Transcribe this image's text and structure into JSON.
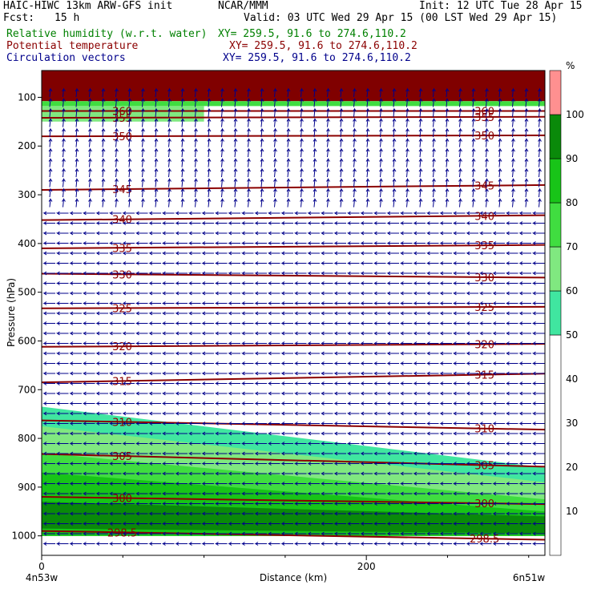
{
  "header": {
    "title_left": "HAIC-HIWC 13km ARW-GFS init",
    "title_center": "NCAR/MMM",
    "init": "Init: 12 UTC Tue 28 Apr 15",
    "fcst_label": "Fcst:",
    "fcst_value": "15 h",
    "valid": "Valid: 03 UTC Wed 29 Apr 15 (00 LST Wed 29 Apr 15)",
    "fields": [
      {
        "name": "Relative humidity (w.r.t. water)",
        "xy": "XY= 259.5, 91.6 to 274.6,110.2",
        "color": "#008000"
      },
      {
        "name": "Potential temperature",
        "xy": "XY= 259.5, 91.6 to 274.6,110.2",
        "color": "#8b0000"
      },
      {
        "name": "Circulation vectors",
        "xy": "XY= 259.5, 91.6 to 274.6,110.2",
        "color": "#00008b"
      }
    ]
  },
  "chart_data": {
    "type": "cross-section",
    "ylabel": "Pressure (hPa)",
    "xlabel": "Distance (km)",
    "y_ticks": [
      100,
      200,
      300,
      400,
      500,
      600,
      700,
      800,
      900,
      1000
    ],
    "x_ticks": [
      0,
      200
    ],
    "ylim": [
      1040,
      45
    ],
    "xlim": [
      0,
      310
    ],
    "x_end_labels": {
      "left": "4n53w",
      "right": "6n51w"
    },
    "rh_colorbar": {
      "unit": "%",
      "levels": [
        10,
        20,
        30,
        40,
        50,
        60,
        70,
        80,
        90,
        100
      ],
      "colors": [
        {
          "from": 0,
          "to": 50,
          "color": "#ffffff"
        },
        {
          "from": 50,
          "to": 60,
          "color": "#40e6a0"
        },
        {
          "from": 60,
          "to": 70,
          "color": "#80e880"
        },
        {
          "from": 70,
          "to": 80,
          "color": "#40dd40"
        },
        {
          "from": 80,
          "to": 90,
          "color": "#18c418"
        },
        {
          "from": 90,
          "to": 100,
          "color": "#0a8a0a"
        },
        {
          "from": 100,
          "to": 110,
          "color": "#ff9090"
        }
      ]
    },
    "theta_contours": [
      {
        "label": "360",
        "p_start": 128,
        "p_end": 128
      },
      {
        "label": "355",
        "p_start": 142,
        "p_end": 140
      },
      {
        "label": "350",
        "p_start": 180,
        "p_end": 178
      },
      {
        "label": "345",
        "p_start": 290,
        "p_end": 280
      },
      {
        "label": "340",
        "p_start": 352,
        "p_end": 342
      },
      {
        "label": "335",
        "p_start": 410,
        "p_end": 403
      },
      {
        "label": "330",
        "p_start": 462,
        "p_end": 470
      },
      {
        "label": "325",
        "p_start": 533,
        "p_end": 530
      },
      {
        "label": "320",
        "p_start": 612,
        "p_end": 606
      },
      {
        "label": "315",
        "p_start": 685,
        "p_end": 667
      },
      {
        "label": "310",
        "p_start": 763,
        "p_end": 782
      },
      {
        "label": "305",
        "p_start": 832,
        "p_end": 858
      },
      {
        "label": "300",
        "p_start": 920,
        "p_end": 935
      },
      {
        "label": "298.5",
        "p_start": 990,
        "p_end": 1008
      }
    ],
    "rh_regions": [
      {
        "rh_min": 100,
        "profile": [
          [
            0,
            45
          ],
          [
            310,
            45
          ],
          [
            310,
            108
          ],
          [
            0,
            108
          ]
        ]
      },
      {
        "rh_min": 70,
        "profile": [
          [
            0,
            108
          ],
          [
            310,
            108
          ],
          [
            310,
            118
          ],
          [
            0,
            118
          ]
        ]
      },
      {
        "rh_min": 60,
        "profile": [
          [
            0,
            118
          ],
          [
            100,
            118
          ],
          [
            100,
            150
          ],
          [
            0,
            150
          ]
        ]
      },
      {
        "rh_min": 50,
        "profile": [
          [
            0,
            735
          ],
          [
            310,
            860
          ],
          [
            310,
            1000
          ],
          [
            0,
            1000
          ]
        ]
      },
      {
        "rh_min": 60,
        "profile": [
          [
            0,
            775
          ],
          [
            310,
            890
          ],
          [
            310,
            1000
          ],
          [
            0,
            1000
          ]
        ]
      },
      {
        "rh_min": 70,
        "profile": [
          [
            0,
            830
          ],
          [
            310,
            925
          ],
          [
            310,
            1000
          ],
          [
            0,
            1000
          ]
        ]
      },
      {
        "rh_min": 80,
        "profile": [
          [
            0,
            870
          ],
          [
            310,
            950
          ],
          [
            310,
            1000
          ],
          [
            0,
            1000
          ]
        ]
      },
      {
        "rh_min": 90,
        "profile": [
          [
            0,
            930
          ],
          [
            310,
            960
          ],
          [
            310,
            995
          ],
          [
            0,
            985
          ]
        ]
      }
    ],
    "wind": {
      "upper_direction": "northward",
      "lower_direction": "westward",
      "transition_p": 320
    }
  }
}
